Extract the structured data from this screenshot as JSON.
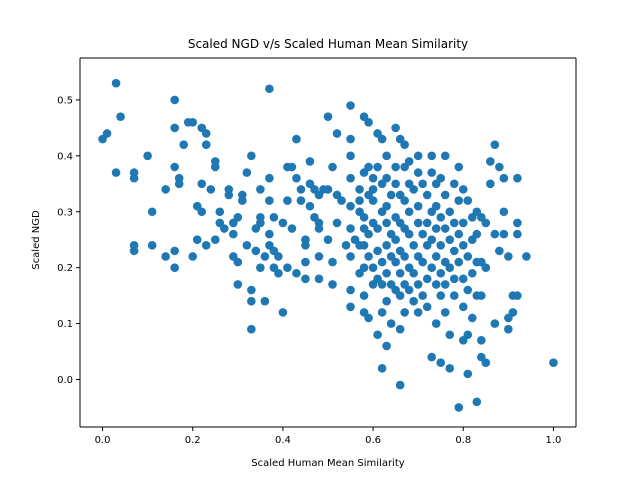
{
  "chart_data": {
    "type": "scatter",
    "title": "Scaled NGD v/s Scaled Human Mean Similarity",
    "xlabel": "Scaled Human Mean Similarity",
    "ylabel": "Scaled NGD",
    "xlim": [
      -0.05,
      1.05
    ],
    "ylim": [
      -0.085,
      0.575
    ],
    "xticks": [
      0.0,
      0.2,
      0.4,
      0.6,
      0.8,
      1.0
    ],
    "xtick_labels": [
      "0.0",
      "0.2",
      "0.4",
      "0.6",
      "0.8",
      "1.0"
    ],
    "yticks": [
      0.0,
      0.1,
      0.2,
      0.3,
      0.4,
      0.5
    ],
    "ytick_labels": [
      "0.0",
      "0.1",
      "0.2",
      "0.3",
      "0.4",
      "0.5"
    ],
    "grid": false,
    "marker_color": "#1f77b4",
    "points": [
      [
        0.0,
        0.43
      ],
      [
        0.01,
        0.44
      ],
      [
        0.03,
        0.53
      ],
      [
        0.04,
        0.47
      ],
      [
        0.03,
        0.37
      ],
      [
        0.07,
        0.37
      ],
      [
        0.07,
        0.36
      ],
      [
        0.07,
        0.24
      ],
      [
        0.07,
        0.23
      ],
      [
        0.1,
        0.4
      ],
      [
        0.11,
        0.3
      ],
      [
        0.11,
        0.24
      ],
      [
        0.14,
        0.34
      ],
      [
        0.14,
        0.22
      ],
      [
        0.16,
        0.5
      ],
      [
        0.16,
        0.45
      ],
      [
        0.16,
        0.38
      ],
      [
        0.17,
        0.36
      ],
      [
        0.17,
        0.35
      ],
      [
        0.18,
        0.42
      ],
      [
        0.16,
        0.23
      ],
      [
        0.16,
        0.2
      ],
      [
        0.19,
        0.46
      ],
      [
        0.2,
        0.46
      ],
      [
        0.21,
        0.31
      ],
      [
        0.22,
        0.45
      ],
      [
        0.23,
        0.44
      ],
      [
        0.22,
        0.35
      ],
      [
        0.22,
        0.3
      ],
      [
        0.2,
        0.22
      ],
      [
        0.21,
        0.25
      ],
      [
        0.23,
        0.24
      ],
      [
        0.23,
        0.42
      ],
      [
        0.24,
        0.34
      ],
      [
        0.25,
        0.39
      ],
      [
        0.25,
        0.38
      ],
      [
        0.25,
        0.25
      ],
      [
        0.26,
        0.28
      ],
      [
        0.26,
        0.3
      ],
      [
        0.27,
        0.27
      ],
      [
        0.28,
        0.34
      ],
      [
        0.28,
        0.33
      ],
      [
        0.29,
        0.28
      ],
      [
        0.29,
        0.26
      ],
      [
        0.29,
        0.22
      ],
      [
        0.3,
        0.21
      ],
      [
        0.3,
        0.29
      ],
      [
        0.3,
        0.17
      ],
      [
        0.31,
        0.33
      ],
      [
        0.31,
        0.32
      ],
      [
        0.32,
        0.37
      ],
      [
        0.32,
        0.24
      ],
      [
        0.33,
        0.4
      ],
      [
        0.33,
        0.16
      ],
      [
        0.33,
        0.14
      ],
      [
        0.33,
        0.09
      ],
      [
        0.34,
        0.23
      ],
      [
        0.34,
        0.27
      ],
      [
        0.35,
        0.34
      ],
      [
        0.35,
        0.29
      ],
      [
        0.35,
        0.28
      ],
      [
        0.35,
        0.2
      ],
      [
        0.36,
        0.14
      ],
      [
        0.36,
        0.22
      ],
      [
        0.37,
        0.52
      ],
      [
        0.37,
        0.26
      ],
      [
        0.37,
        0.24
      ],
      [
        0.37,
        0.36
      ],
      [
        0.37,
        0.32
      ],
      [
        0.38,
        0.29
      ],
      [
        0.38,
        0.23
      ],
      [
        0.38,
        0.2
      ],
      [
        0.39,
        0.22
      ],
      [
        0.39,
        0.19
      ],
      [
        0.4,
        0.12
      ],
      [
        0.4,
        0.28
      ],
      [
        0.41,
        0.32
      ],
      [
        0.41,
        0.38
      ],
      [
        0.41,
        0.2
      ],
      [
        0.42,
        0.38
      ],
      [
        0.42,
        0.27
      ],
      [
        0.43,
        0.43
      ],
      [
        0.43,
        0.19
      ],
      [
        0.43,
        0.36
      ],
      [
        0.44,
        0.34
      ],
      [
        0.44,
        0.32
      ],
      [
        0.45,
        0.25
      ],
      [
        0.45,
        0.21
      ],
      [
        0.45,
        0.24
      ],
      [
        0.45,
        0.18
      ],
      [
        0.46,
        0.39
      ],
      [
        0.46,
        0.35
      ],
      [
        0.46,
        0.31
      ],
      [
        0.47,
        0.29
      ],
      [
        0.47,
        0.34
      ],
      [
        0.48,
        0.33
      ],
      [
        0.48,
        0.28
      ],
      [
        0.48,
        0.27
      ],
      [
        0.48,
        0.22
      ],
      [
        0.48,
        0.18
      ],
      [
        0.49,
        0.34
      ],
      [
        0.5,
        0.47
      ],
      [
        0.5,
        0.34
      ],
      [
        0.5,
        0.25
      ],
      [
        0.51,
        0.38
      ],
      [
        0.51,
        0.21
      ],
      [
        0.51,
        0.17
      ],
      [
        0.52,
        0.44
      ],
      [
        0.52,
        0.33
      ],
      [
        0.52,
        0.28
      ],
      [
        0.53,
        0.32
      ],
      [
        0.54,
        0.24
      ],
      [
        0.55,
        0.49
      ],
      [
        0.55,
        0.43
      ],
      [
        0.55,
        0.4
      ],
      [
        0.55,
        0.36
      ],
      [
        0.55,
        0.31
      ],
      [
        0.55,
        0.27
      ],
      [
        0.55,
        0.22
      ],
      [
        0.55,
        0.16
      ],
      [
        0.55,
        0.13
      ],
      [
        0.56,
        0.25
      ],
      [
        0.57,
        0.34
      ],
      [
        0.57,
        0.32
      ],
      [
        0.57,
        0.3
      ],
      [
        0.57,
        0.24
      ],
      [
        0.57,
        0.19
      ],
      [
        0.58,
        0.47
      ],
      [
        0.58,
        0.37
      ],
      [
        0.58,
        0.29
      ],
      [
        0.58,
        0.27
      ],
      [
        0.58,
        0.24
      ],
      [
        0.58,
        0.2
      ],
      [
        0.58,
        0.15
      ],
      [
        0.58,
        0.12
      ],
      [
        0.59,
        0.46
      ],
      [
        0.59,
        0.38
      ],
      [
        0.59,
        0.33
      ],
      [
        0.59,
        0.26
      ],
      [
        0.59,
        0.22
      ],
      [
        0.59,
        0.11
      ],
      [
        0.6,
        0.36
      ],
      [
        0.6,
        0.34
      ],
      [
        0.6,
        0.32
      ],
      [
        0.6,
        0.28
      ],
      [
        0.6,
        0.2
      ],
      [
        0.6,
        0.17
      ],
      [
        0.61,
        0.44
      ],
      [
        0.61,
        0.38
      ],
      [
        0.61,
        0.27
      ],
      [
        0.61,
        0.23
      ],
      [
        0.61,
        0.18
      ],
      [
        0.61,
        0.08
      ],
      [
        0.62,
        0.43
      ],
      [
        0.62,
        0.35
      ],
      [
        0.62,
        0.3
      ],
      [
        0.62,
        0.21
      ],
      [
        0.62,
        0.17
      ],
      [
        0.62,
        0.12
      ],
      [
        0.62,
        0.02
      ],
      [
        0.63,
        0.4
      ],
      [
        0.63,
        0.36
      ],
      [
        0.63,
        0.31
      ],
      [
        0.63,
        0.28
      ],
      [
        0.63,
        0.24
      ],
      [
        0.63,
        0.19
      ],
      [
        0.63,
        0.14
      ],
      [
        0.63,
        0.06
      ],
      [
        0.64,
        0.33
      ],
      [
        0.64,
        0.26
      ],
      [
        0.64,
        0.22
      ],
      [
        0.64,
        0.17
      ],
      [
        0.64,
        0.1
      ],
      [
        0.65,
        0.45
      ],
      [
        0.65,
        0.38
      ],
      [
        0.65,
        0.35
      ],
      [
        0.65,
        0.29
      ],
      [
        0.65,
        0.25
      ],
      [
        0.65,
        0.21
      ],
      [
        0.65,
        0.16
      ],
      [
        0.66,
        0.43
      ],
      [
        0.66,
        0.33
      ],
      [
        0.66,
        0.28
      ],
      [
        0.66,
        0.23
      ],
      [
        0.66,
        0.19
      ],
      [
        0.66,
        0.15
      ],
      [
        0.66,
        0.09
      ],
      [
        0.66,
        -0.01
      ],
      [
        0.67,
        0.42
      ],
      [
        0.67,
        0.38
      ],
      [
        0.67,
        0.32
      ],
      [
        0.67,
        0.27
      ],
      [
        0.67,
        0.22
      ],
      [
        0.67,
        0.17
      ],
      [
        0.67,
        0.12
      ],
      [
        0.68,
        0.39
      ],
      [
        0.68,
        0.35
      ],
      [
        0.68,
        0.3
      ],
      [
        0.68,
        0.26
      ],
      [
        0.68,
        0.2
      ],
      [
        0.68,
        0.16
      ],
      [
        0.69,
        0.34
      ],
      [
        0.69,
        0.24
      ],
      [
        0.69,
        0.19
      ],
      [
        0.69,
        0.14
      ],
      [
        0.7,
        0.4
      ],
      [
        0.7,
        0.37
      ],
      [
        0.7,
        0.31
      ],
      [
        0.7,
        0.28
      ],
      [
        0.7,
        0.22
      ],
      [
        0.7,
        0.17
      ],
      [
        0.7,
        0.12
      ],
      [
        0.71,
        0.35
      ],
      [
        0.71,
        0.26
      ],
      [
        0.71,
        0.21
      ],
      [
        0.71,
        0.15
      ],
      [
        0.72,
        0.33
      ],
      [
        0.72,
        0.28
      ],
      [
        0.72,
        0.24
      ],
      [
        0.72,
        0.18
      ],
      [
        0.72,
        0.13
      ],
      [
        0.73,
        0.4
      ],
      [
        0.73,
        0.37
      ],
      [
        0.73,
        0.3
      ],
      [
        0.73,
        0.25
      ],
      [
        0.73,
        0.2
      ],
      [
        0.73,
        0.04
      ],
      [
        0.74,
        0.35
      ],
      [
        0.74,
        0.31
      ],
      [
        0.74,
        0.27
      ],
      [
        0.74,
        0.22
      ],
      [
        0.74,
        0.17
      ],
      [
        0.74,
        0.1
      ],
      [
        0.75,
        0.36
      ],
      [
        0.75,
        0.29
      ],
      [
        0.75,
        0.24
      ],
      [
        0.75,
        0.19
      ],
      [
        0.75,
        0.15
      ],
      [
        0.75,
        0.03
      ],
      [
        0.76,
        0.4
      ],
      [
        0.76,
        0.33
      ],
      [
        0.76,
        0.27
      ],
      [
        0.76,
        0.21
      ],
      [
        0.76,
        0.17
      ],
      [
        0.76,
        0.12
      ],
      [
        0.77,
        0.3
      ],
      [
        0.77,
        0.25
      ],
      [
        0.77,
        0.2
      ],
      [
        0.77,
        0.08
      ],
      [
        0.77,
        0.02
      ],
      [
        0.78,
        0.35
      ],
      [
        0.78,
        0.28
      ],
      [
        0.78,
        0.23
      ],
      [
        0.78,
        0.18
      ],
      [
        0.78,
        0.15
      ],
      [
        0.79,
        0.38
      ],
      [
        0.79,
        0.32
      ],
      [
        0.79,
        0.26
      ],
      [
        0.79,
        0.21
      ],
      [
        0.79,
        -0.05
      ],
      [
        0.8,
        0.34
      ],
      [
        0.8,
        0.28
      ],
      [
        0.8,
        0.24
      ],
      [
        0.8,
        0.18
      ],
      [
        0.8,
        0.13
      ],
      [
        0.8,
        0.07
      ],
      [
        0.81,
        0.32
      ],
      [
        0.81,
        0.22
      ],
      [
        0.81,
        0.16
      ],
      [
        0.81,
        0.08
      ],
      [
        0.81,
        0.01
      ],
      [
        0.82,
        0.29
      ],
      [
        0.82,
        0.25
      ],
      [
        0.82,
        0.19
      ],
      [
        0.82,
        0.11
      ],
      [
        0.83,
        0.3
      ],
      [
        0.83,
        0.26
      ],
      [
        0.83,
        0.21
      ],
      [
        0.83,
        0.15
      ],
      [
        0.83,
        -0.04
      ],
      [
        0.84,
        0.29
      ],
      [
        0.84,
        0.21
      ],
      [
        0.84,
        0.15
      ],
      [
        0.84,
        0.07
      ],
      [
        0.84,
        0.04
      ],
      [
        0.85,
        0.03
      ],
      [
        0.85,
        0.28
      ],
      [
        0.85,
        0.2
      ],
      [
        0.86,
        0.35
      ],
      [
        0.86,
        0.39
      ],
      [
        0.87,
        0.42
      ],
      [
        0.87,
        0.26
      ],
      [
        0.87,
        0.1
      ],
      [
        0.88,
        0.38
      ],
      [
        0.88,
        0.23
      ],
      [
        0.89,
        0.36
      ],
      [
        0.89,
        0.3
      ],
      [
        0.89,
        0.26
      ],
      [
        0.9,
        0.22
      ],
      [
        0.9,
        0.11
      ],
      [
        0.9,
        0.09
      ],
      [
        0.91,
        0.15
      ],
      [
        0.91,
        0.12
      ],
      [
        0.92,
        0.36
      ],
      [
        0.92,
        0.28
      ],
      [
        0.92,
        0.26
      ],
      [
        0.92,
        0.15
      ],
      [
        0.94,
        0.22
      ],
      [
        1.0,
        0.03
      ]
    ]
  }
}
